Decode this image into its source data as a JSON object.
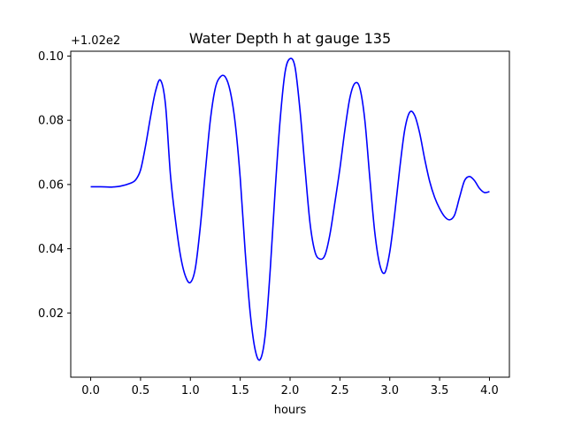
{
  "chart_data": {
    "type": "line",
    "title": "Water Depth h at gauge 135",
    "xlabel": "hours",
    "ylabel": "",
    "offset_label": "+1.02e2",
    "xlim": [
      -0.2,
      4.2
    ],
    "ylim": [
      0.0,
      0.1015
    ],
    "x_ticks": [
      0.0,
      0.5,
      1.0,
      1.5,
      2.0,
      2.5,
      3.0,
      3.5,
      4.0
    ],
    "x_tick_labels": [
      "0.0",
      "0.5",
      "1.0",
      "1.5",
      "2.0",
      "2.5",
      "3.0",
      "3.5",
      "4.0"
    ],
    "y_ticks": [
      0.02,
      0.04,
      0.06,
      0.08,
      0.1
    ],
    "y_tick_labels": [
      "0.02",
      "0.04",
      "0.06",
      "0.08",
      "0.10"
    ],
    "grid": false,
    "series": [
      {
        "color": "#0000ff",
        "x": [
          0.0,
          0.1,
          0.2,
          0.3,
          0.4,
          0.45,
          0.5,
          0.55,
          0.6,
          0.65,
          0.7,
          0.75,
          0.8,
          0.85,
          0.9,
          0.95,
          1.0,
          1.05,
          1.1,
          1.15,
          1.2,
          1.25,
          1.3,
          1.35,
          1.4,
          1.45,
          1.5,
          1.55,
          1.6,
          1.65,
          1.7,
          1.75,
          1.8,
          1.85,
          1.9,
          1.95,
          2.0,
          2.05,
          2.1,
          2.15,
          2.2,
          2.25,
          2.3,
          2.35,
          2.4,
          2.45,
          2.5,
          2.55,
          2.6,
          2.65,
          2.7,
          2.75,
          2.8,
          2.85,
          2.9,
          2.95,
          3.0,
          3.05,
          3.1,
          3.15,
          3.2,
          3.25,
          3.3,
          3.35,
          3.4,
          3.45,
          3.5,
          3.55,
          3.6,
          3.65,
          3.7,
          3.75,
          3.8,
          3.85,
          3.9,
          3.95,
          4.0
        ],
        "values": [
          0.0593,
          0.0593,
          0.0592,
          0.0595,
          0.0604,
          0.0614,
          0.0645,
          0.072,
          0.081,
          0.089,
          0.0925,
          0.085,
          0.063,
          0.049,
          0.038,
          0.0315,
          0.0295,
          0.034,
          0.047,
          0.064,
          0.08,
          0.09,
          0.0935,
          0.0935,
          0.089,
          0.079,
          0.062,
          0.039,
          0.02,
          0.0085,
          0.0055,
          0.013,
          0.033,
          0.058,
          0.08,
          0.095,
          0.0992,
          0.0965,
          0.083,
          0.065,
          0.048,
          0.039,
          0.0368,
          0.038,
          0.0445,
          0.0545,
          0.065,
          0.077,
          0.087,
          0.0915,
          0.09,
          0.08,
          0.062,
          0.045,
          0.035,
          0.0325,
          0.039,
          0.051,
          0.065,
          0.077,
          0.0825,
          0.0815,
          0.076,
          0.068,
          0.061,
          0.056,
          0.0525,
          0.05,
          0.049,
          0.0505,
          0.056,
          0.0612,
          0.0625,
          0.0612,
          0.0588,
          0.0575,
          0.0578
        ]
      }
    ]
  }
}
